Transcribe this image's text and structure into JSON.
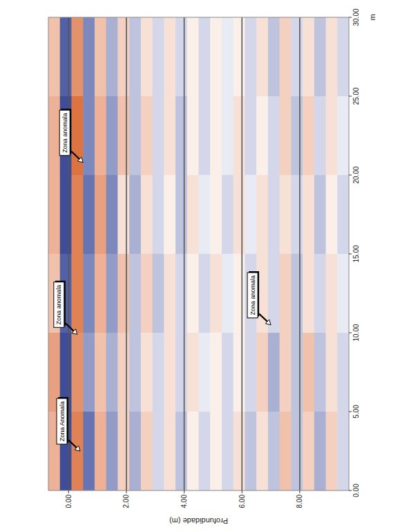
{
  "chart_data": {
    "type": "heatmap",
    "x_label": "m",
    "y_label": "Profundidade (m)",
    "xlim": [
      0,
      30
    ],
    "ylim": [
      -0.7,
      9.7
    ],
    "xticks": [
      {
        "value": 0,
        "label": "0.00"
      },
      {
        "value": 5,
        "label": "5.00"
      },
      {
        "value": 10,
        "label": "10.00"
      },
      {
        "value": 15,
        "label": "15.00"
      },
      {
        "value": 20,
        "label": "20.00"
      },
      {
        "value": 25,
        "label": "25.00"
      },
      {
        "value": 30,
        "label": "30.00"
      }
    ],
    "yticks": [
      {
        "value": 0,
        "label": "0.00"
      },
      {
        "value": 2,
        "label": "2.00"
      },
      {
        "value": 4,
        "label": "4.00"
      },
      {
        "value": 6,
        "label": "6.00"
      },
      {
        "value": 8,
        "label": "8.00"
      }
    ],
    "grid": true,
    "colors": [
      "#27398f",
      "#ffffff",
      "#d9632c"
    ],
    "zlim": [
      -1,
      1
    ],
    "x_edges": [
      0,
      5,
      10,
      15,
      20,
      25,
      30
    ],
    "y_edges": [
      -0.7,
      -0.3,
      0.1,
      0.5,
      0.9,
      1.3,
      1.7,
      2.1,
      2.5,
      2.9,
      3.3,
      3.7,
      4.1,
      4.5,
      4.9,
      5.3,
      5.7,
      6.1,
      6.5,
      6.9,
      7.3,
      7.7,
      8.1,
      8.5,
      8.9,
      9.3,
      9.7
    ],
    "cells": [
      [
        0.5,
        0.6,
        0.4,
        0.5,
        0.5,
        0.4
      ],
      [
        -0.9,
        -0.9,
        -0.8,
        -0.9,
        -0.9,
        -0.8
      ],
      [
        0.8,
        0.7,
        0.8,
        0.8,
        0.9,
        0.7
      ],
      [
        -0.7,
        -0.5,
        -0.6,
        -0.7,
        -0.6,
        -0.6
      ],
      [
        0.5,
        0.4,
        0.5,
        0.6,
        0.5,
        0.4
      ],
      [
        -0.5,
        -0.4,
        -0.5,
        -0.6,
        -0.5,
        -0.4
      ],
      [
        0.3,
        0.3,
        0.4,
        0.2,
        0.4,
        0.3
      ],
      [
        -0.4,
        -0.3,
        -0.3,
        -0.4,
        -0.3,
        -0.3
      ],
      [
        0.3,
        0.2,
        0.3,
        0.2,
        0.3,
        0.2
      ],
      [
        -0.2,
        -0.2,
        -0.3,
        -0.2,
        -0.2,
        -0.2
      ],
      [
        0.2,
        0.2,
        0.2,
        0.1,
        0.2,
        0.2
      ],
      [
        -0.3,
        -0.2,
        -0.2,
        -0.3,
        -0.3,
        -0.2
      ],
      [
        0.1,
        0.2,
        0.1,
        0.2,
        0.1,
        0.1
      ],
      [
        -0.2,
        -0.1,
        -0.2,
        -0.1,
        -0.2,
        -0.2
      ],
      [
        0.1,
        0.1,
        0.2,
        0.1,
        0.1,
        0.1
      ],
      [
        -0.2,
        -0.2,
        -0.1,
        -0.2,
        -0.1,
        -0.1
      ],
      [
        0.2,
        0.1,
        0.1,
        0.2,
        0.2,
        0.1
      ],
      [
        -0.3,
        -0.2,
        -0.2,
        -0.1,
        -0.2,
        -0.2
      ],
      [
        0.2,
        0.3,
        0.2,
        0.2,
        0.1,
        0.2
      ],
      [
        -0.3,
        -0.4,
        -0.2,
        -0.2,
        -0.2,
        -0.3
      ],
      [
        0.4,
        0.3,
        0.3,
        0.2,
        0.3,
        0.3
      ],
      [
        -0.3,
        -0.3,
        -0.3,
        -0.2,
        -0.3,
        -0.2
      ],
      [
        0.3,
        0.4,
        0.2,
        0.2,
        0.3,
        0.2
      ],
      [
        -0.4,
        -0.3,
        -0.2,
        -0.3,
        -0.2,
        -0.3
      ],
      [
        0.3,
        0.2,
        0.2,
        0.1,
        0.2,
        0.2
      ],
      [
        -0.2,
        -0.2,
        -0.1,
        -0.2,
        -0.1,
        -0.2
      ]
    ],
    "annotations": [
      {
        "text": "Zona Anomala",
        "x": 2.5,
        "y": 0.4
      },
      {
        "text": "Zona anomala",
        "x": 9.9,
        "y": 0.3
      },
      {
        "text": "Zona anomala",
        "x": 20.8,
        "y": 0.5
      },
      {
        "text": "Zona anomala",
        "x": 10.5,
        "y": 7.0
      }
    ]
  }
}
